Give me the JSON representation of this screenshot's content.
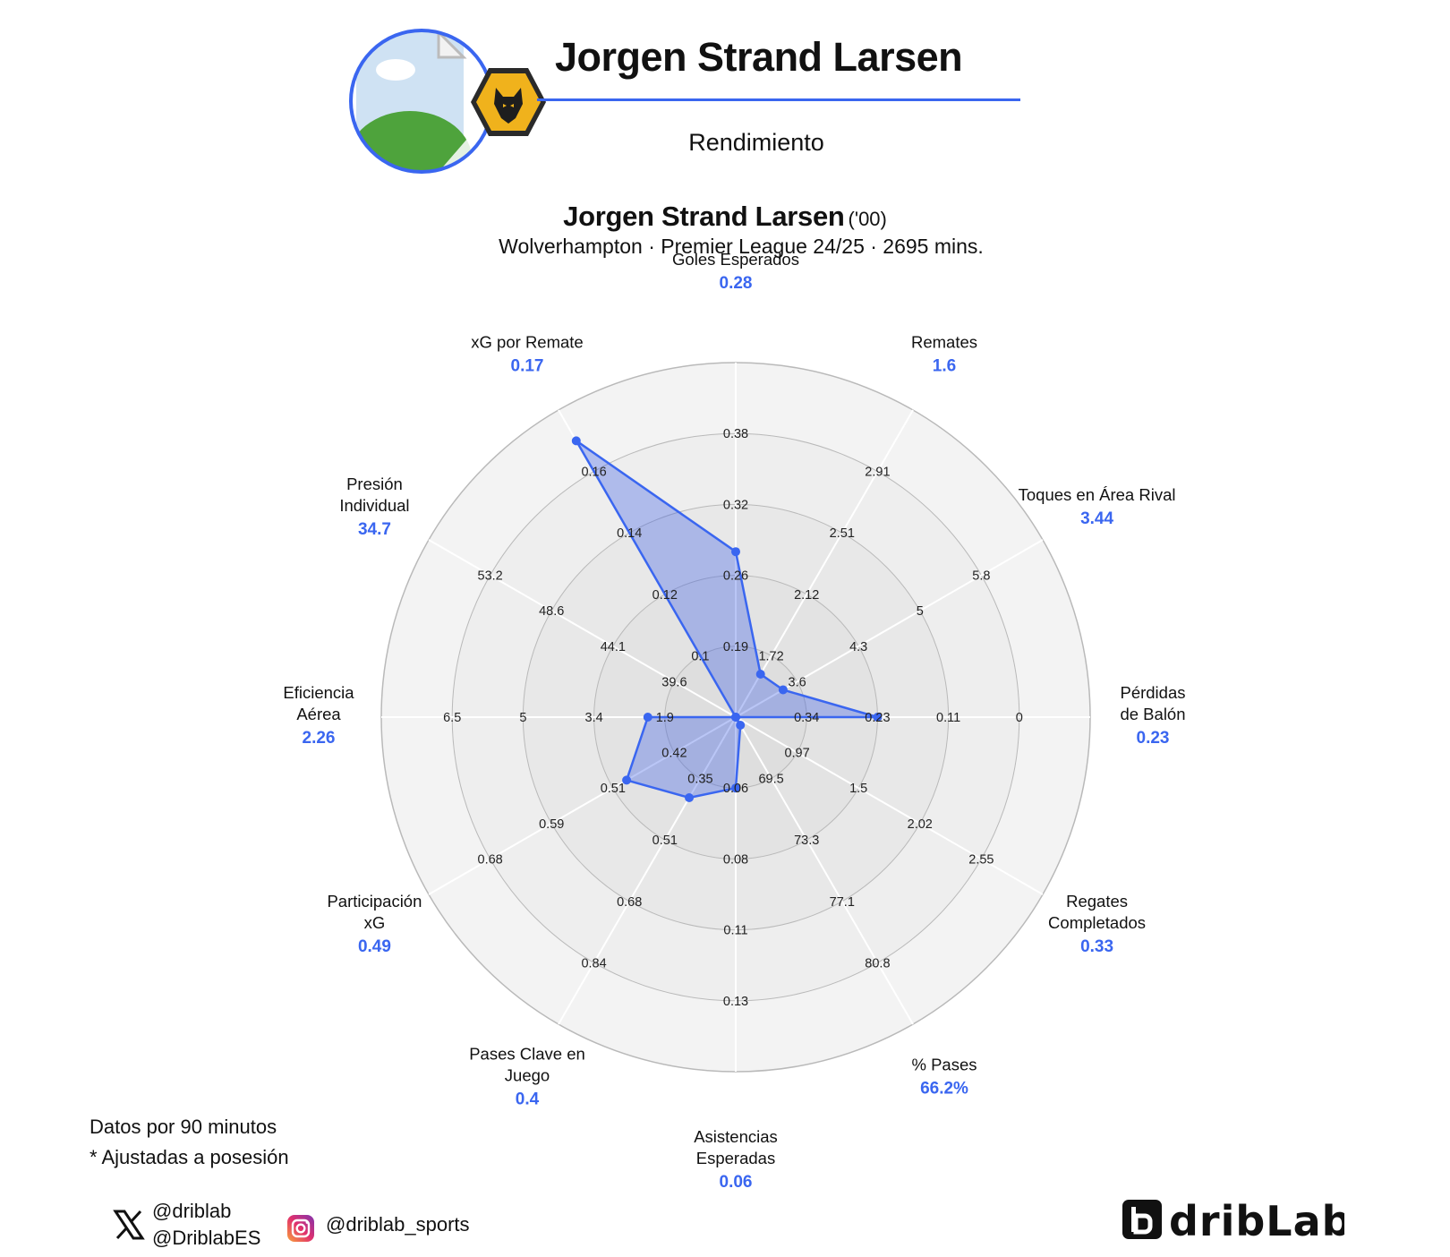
{
  "header": {
    "title": "Jorgen Strand Larsen",
    "subtitle": "Rendimiento"
  },
  "player": {
    "name": "Jorgen Strand Larsen",
    "age": "('00)",
    "details": "Wolverhampton · Premier League 24/25 · 2695 mins."
  },
  "notes": {
    "line1": "Datos por 90 minutos",
    "line2": "* Ajustadas a posesión"
  },
  "socials": {
    "x_handle_1": "@driblab",
    "x_handle_2": "@DriblabES",
    "instagram_handle": "@driblab_sports"
  },
  "brand": {
    "name": "dribLab"
  },
  "colors": {
    "accent": "#3a66f0",
    "fill": "#3a5ce6",
    "value_text": "#3a66f0",
    "ring_bg": "#efefef"
  },
  "icons": {
    "x": "x-logo-icon",
    "instagram": "instagram-icon",
    "crest": "wolves-crest-icon",
    "brand": "driblab-logo-icon"
  },
  "chart_data": {
    "type": "radar",
    "series": [
      {
        "values": [
          0.28,
          1.6,
          3.44,
          0.23,
          0.33,
          66.2,
          0.06,
          0.4,
          0.49,
          2.26,
          34.7,
          0.17
        ]
      }
    ],
    "axes": [
      {
        "label": "Goles Esperados",
        "value": 0.28,
        "value_label": "0.28",
        "ticks": [
          "0.19",
          "0.26",
          "0.32",
          "0.38"
        ]
      },
      {
        "label": "Remates",
        "value": 1.6,
        "value_label": "1.6",
        "ticks": [
          "1.72",
          "2.12",
          "2.51",
          "2.91"
        ]
      },
      {
        "label": "Toques en Área Rival",
        "value": 3.44,
        "value_label": "3.44",
        "ticks": [
          "3.6",
          "4.3",
          "5",
          "5.8"
        ]
      },
      {
        "label": "Pérdidas de Balón",
        "value": 0.23,
        "value_label": "0.23",
        "ticks": [
          "0.34",
          "0.23",
          "0.11",
          "0"
        ]
      },
      {
        "label": "Regates Completados",
        "value": 0.33,
        "value_label": "0.33",
        "ticks": [
          "0.97",
          "1.5",
          "2.02",
          "2.55"
        ]
      },
      {
        "label": "% Pases",
        "value": 66.2,
        "value_label": "66.2%",
        "ticks": [
          "69.5",
          "73.3",
          "77.1",
          "80.8"
        ]
      },
      {
        "label": "Asistencias Esperadas",
        "value": 0.06,
        "value_label": "0.06",
        "ticks": [
          "0.06",
          "0.08",
          "0.11",
          "0.13"
        ]
      },
      {
        "label": "Pases Clave en Juego",
        "value": 0.4,
        "value_label": "0.4",
        "ticks": [
          "0.35",
          "0.51",
          "0.68",
          "0.84"
        ]
      },
      {
        "label": "Participación xG",
        "value": 0.49,
        "value_label": "0.49",
        "ticks": [
          "0.42",
          "0.51",
          "0.59",
          "0.68"
        ]
      },
      {
        "label": "Eficiencia Aérea",
        "value": 2.26,
        "value_label": "2.26",
        "ticks": [
          "1.9",
          "3.4",
          "5",
          "6.5"
        ]
      },
      {
        "label": "Presión Individual",
        "value": 34.7,
        "value_label": "34.7",
        "ticks": [
          "39.6",
          "44.1",
          "48.6",
          "53.2"
        ]
      },
      {
        "label": "xG por Remate",
        "value": 0.17,
        "value_label": "0.17",
        "ticks": [
          "0.1",
          "0.12",
          "0.14",
          "0.16"
        ]
      }
    ],
    "rings": 5
  }
}
